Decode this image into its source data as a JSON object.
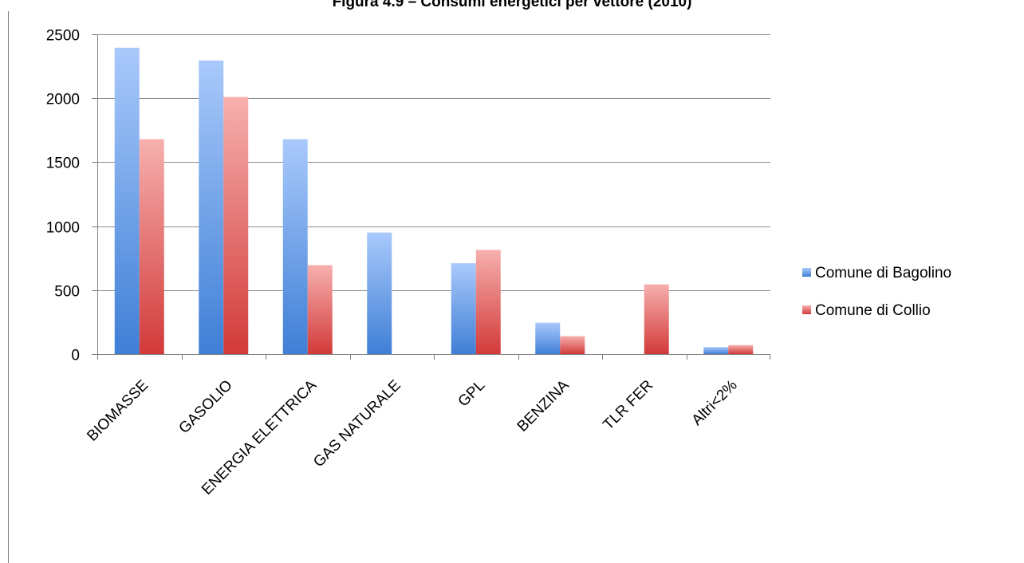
{
  "chart_data": {
    "type": "bar",
    "title": "Figura 4.9 – Consumi energetici per vettore (2010)",
    "categories": [
      "BIOMASSE",
      "GASOLIO",
      "ENERGIA ELETTRICA",
      "GAS NATURALE",
      "GPL",
      "BENZINA",
      "TLR FER",
      "Altri<2%"
    ],
    "series": [
      {
        "name": "Comune di Bagolino",
        "color": "#4a86d8",
        "values": [
          2395,
          2295,
          1680,
          950,
          710,
          245,
          0,
          55
        ]
      },
      {
        "name": "Comune di Collio",
        "color": "#d94b4b",
        "values": [
          1680,
          2010,
          695,
          0,
          815,
          140,
          545,
          70
        ]
      }
    ],
    "ylim": [
      0,
      2500
    ],
    "yticks": [
      0,
      500,
      1000,
      1500,
      2000,
      2500
    ],
    "grid": true,
    "legend_position": "right"
  }
}
